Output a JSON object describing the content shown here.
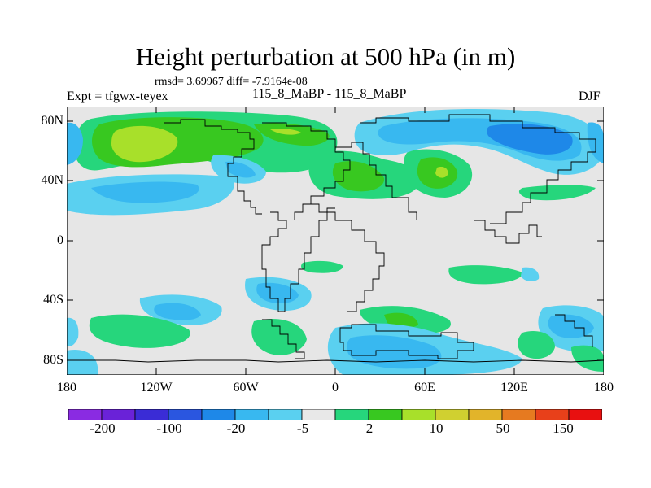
{
  "title": "Height perturbation at 500 hPa (in m)",
  "rmsd_line": "rmsd= 3.69967 diff= -7.9164e-08",
  "expt_line": "Expt = tfgwx-teyex",
  "case_line": "115_8_MaBP - 115_8_MaBP",
  "season": "DJF",
  "lat_labels": [
    "80N",
    "40N",
    "0",
    "40S",
    "80S"
  ],
  "lon_labels": [
    "180",
    "120W",
    "60W",
    "0",
    "60E",
    "120E",
    "180"
  ],
  "colorbar": {
    "colors": [
      "#8a2be2",
      "#6a22d8",
      "#3a2cd6",
      "#2a56e0",
      "#1e88e8",
      "#38b8f0",
      "#5ad0f0",
      "#e8e8e8",
      "#26d67c",
      "#38c820",
      "#a8e02a",
      "#d0d030",
      "#e2b42a",
      "#e67a20",
      "#e8401a",
      "#e81010"
    ],
    "labels": [
      "-200",
      "-100",
      "-20",
      "-5",
      "2",
      "10",
      "50",
      "150"
    ]
  }
}
